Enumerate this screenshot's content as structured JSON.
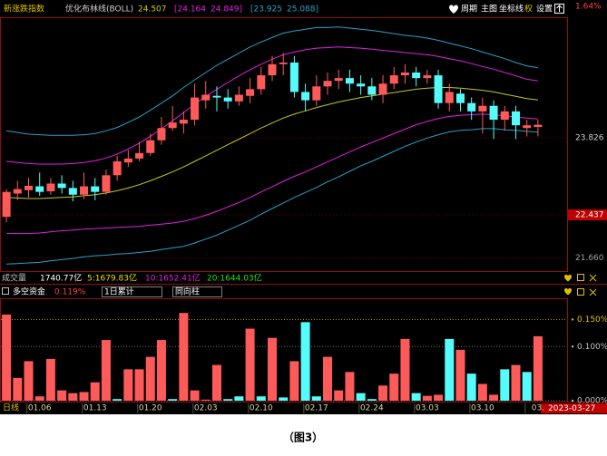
{
  "ui": {
    "index_name": "新涨跌指数",
    "indicator": "优化布林线(BOLL)",
    "boll_mid": "24.507",
    "boll_inner_low": "[24.164",
    "boll_inner_high": "24.849]",
    "boll_outer_low": "[23.925",
    "boll_outer_high": "25.088]",
    "menu": [
      "周期",
      "主图",
      "坐标线",
      "权",
      "设置"
    ],
    "top_pct": "1.64%",
    "volume_label": "成交量",
    "volume": "1740.77亿",
    "vol_ma5": "5:1679.83亿",
    "vol_ma10": "10:1652.41亿",
    "vol_ma20": "20:1644.03亿",
    "panel_name": "多空资金",
    "panel_value": "0.119%",
    "select1": "1日累计",
    "select2": "同向柱",
    "period": "日线",
    "date": "2023-03-27",
    "caption": "（图3）"
  },
  "chart_data": [
    {
      "type": "candlestick",
      "up_color": "#ff5a5a",
      "down_color": "#54fcfc",
      "categories": [
        null,
        null,
        null,
        "01.06",
        null,
        null,
        null,
        null,
        "01.13",
        null,
        null,
        null,
        null,
        "01.20",
        null,
        null,
        null,
        null,
        "02.03",
        null,
        null,
        null,
        null,
        "02.10",
        null,
        null,
        null,
        null,
        "02.17",
        null,
        null,
        null,
        null,
        "02.24",
        null,
        null,
        null,
        null,
        "03.03",
        null,
        null,
        null,
        null,
        "03.10",
        null,
        null,
        null,
        null,
        "03."
      ],
      "open": [
        22.4,
        22.82,
        22.88,
        22.95,
        22.86,
        23.0,
        22.92,
        22.8,
        22.95,
        22.85,
        23.15,
        23.38,
        23.45,
        23.55,
        23.78,
        24.0,
        24.08,
        24.15,
        24.5,
        24.58,
        24.55,
        24.48,
        24.58,
        24.7,
        24.95,
        25.15,
        25.18,
        24.65,
        24.5,
        24.75,
        24.85,
        24.9,
        24.8,
        24.75,
        24.6,
        24.8,
        24.95,
        25.0,
        24.9,
        24.95,
        24.45,
        24.62,
        24.45,
        24.3,
        24.4,
        24.15,
        24.3,
        24.0,
        24.02
      ],
      "high": [
        22.9,
        23.05,
        23.1,
        23.2,
        23.1,
        23.15,
        23.05,
        23.2,
        23.1,
        23.25,
        23.5,
        23.6,
        23.75,
        23.9,
        24.2,
        24.4,
        24.3,
        24.8,
        24.85,
        24.75,
        24.7,
        24.75,
        24.9,
        25.1,
        25.3,
        25.35,
        25.3,
        24.8,
        24.95,
        25.0,
        25.05,
        25.05,
        24.95,
        24.9,
        24.95,
        25.1,
        25.15,
        25.1,
        25.05,
        25.05,
        24.8,
        24.7,
        24.55,
        24.55,
        24.5,
        24.4,
        24.4,
        24.15,
        24.15
      ],
      "low": [
        22.3,
        22.7,
        22.75,
        22.78,
        22.8,
        22.82,
        22.68,
        22.72,
        22.7,
        22.8,
        23.05,
        23.3,
        23.4,
        23.5,
        23.7,
        23.95,
        23.9,
        24.05,
        24.35,
        24.3,
        24.35,
        24.4,
        24.45,
        24.6,
        24.85,
        24.95,
        24.55,
        24.3,
        24.4,
        24.6,
        24.7,
        24.65,
        24.6,
        24.5,
        24.45,
        24.7,
        24.8,
        24.75,
        24.8,
        24.35,
        24.3,
        24.3,
        24.15,
        23.9,
        23.8,
        23.95,
        23.8,
        23.85,
        23.85
      ],
      "close": [
        22.85,
        22.9,
        22.96,
        22.85,
        23.0,
        22.92,
        22.8,
        22.95,
        22.85,
        23.15,
        23.4,
        23.45,
        23.55,
        23.78,
        24.0,
        24.1,
        24.15,
        24.55,
        24.6,
        24.55,
        24.48,
        24.6,
        24.7,
        24.95,
        25.15,
        25.18,
        24.65,
        24.5,
        24.75,
        24.85,
        24.9,
        24.8,
        24.75,
        24.6,
        24.8,
        24.95,
        25.0,
        24.9,
        24.95,
        24.45,
        24.65,
        24.45,
        24.3,
        24.4,
        24.15,
        24.3,
        24.05,
        24.05,
        24.06
      ],
      "series": [
        {
          "color": "#c8c81e",
          "values": [
            22.75,
            22.74,
            22.73,
            22.73,
            22.74,
            22.75,
            22.76,
            22.78,
            22.8,
            22.83,
            22.87,
            22.92,
            22.98,
            23.05,
            23.13,
            23.21,
            23.3,
            23.4,
            23.5,
            23.6,
            23.7,
            23.8,
            23.9,
            24.0,
            24.09,
            24.18,
            24.25,
            24.31,
            24.37,
            24.42,
            24.47,
            24.51,
            24.55,
            24.58,
            24.61,
            24.64,
            24.67,
            24.7,
            24.72,
            24.73,
            24.73,
            24.72,
            24.7,
            24.68,
            24.65,
            24.61,
            24.57,
            24.53,
            24.507
          ]
        },
        {
          "color": "#e020e0",
          "values": [
            23.4,
            23.38,
            23.36,
            23.35,
            23.35,
            23.35,
            23.36,
            23.38,
            23.41,
            23.46,
            23.53,
            23.62,
            23.73,
            23.85,
            23.99,
            24.13,
            24.28,
            24.43,
            24.57,
            24.7,
            24.82,
            24.94,
            25.05,
            25.15,
            25.24,
            25.32,
            25.37,
            25.41,
            25.44,
            25.45,
            25.46,
            25.45,
            25.44,
            25.42,
            25.4,
            25.38,
            25.36,
            25.34,
            25.32,
            25.29,
            25.25,
            25.21,
            25.16,
            25.11,
            25.06,
            25.0,
            24.94,
            24.88,
            24.849
          ]
        },
        {
          "color": "#e020e0",
          "values": [
            22.1,
            22.1,
            22.1,
            22.11,
            22.13,
            22.15,
            22.16,
            22.18,
            22.19,
            22.2,
            22.21,
            22.22,
            22.23,
            22.25,
            22.27,
            22.29,
            22.32,
            22.37,
            22.43,
            22.5,
            22.58,
            22.66,
            22.75,
            22.85,
            22.94,
            23.04,
            23.13,
            23.21,
            23.3,
            23.39,
            23.48,
            23.57,
            23.66,
            23.74,
            23.82,
            23.9,
            23.98,
            24.06,
            24.12,
            24.17,
            24.21,
            24.23,
            24.24,
            24.25,
            24.24,
            24.22,
            24.2,
            24.18,
            24.164
          ]
        },
        {
          "color": "#2aa0c8",
          "values": [
            23.95,
            23.92,
            23.89,
            23.88,
            23.87,
            23.87,
            23.87,
            23.88,
            23.9,
            23.95,
            24.01,
            24.1,
            24.2,
            24.32,
            24.45,
            24.58,
            24.73,
            24.87,
            25.0,
            25.13,
            25.24,
            25.35,
            25.46,
            25.55,
            25.63,
            25.71,
            25.75,
            25.78,
            25.81,
            25.81,
            25.82,
            25.8,
            25.78,
            25.76,
            25.73,
            25.7,
            25.67,
            25.65,
            25.62,
            25.58,
            25.53,
            25.48,
            25.43,
            25.37,
            25.31,
            25.25,
            25.18,
            25.12,
            25.088
          ]
        },
        {
          "color": "#2aa0c8",
          "values": [
            21.55,
            21.56,
            21.57,
            21.58,
            21.61,
            21.63,
            21.65,
            21.68,
            21.7,
            21.71,
            21.73,
            21.74,
            21.76,
            21.78,
            21.81,
            21.84,
            21.87,
            21.93,
            22.0,
            22.07,
            22.16,
            22.25,
            22.34,
            22.45,
            22.55,
            22.65,
            22.75,
            22.84,
            22.93,
            23.03,
            23.12,
            23.22,
            23.32,
            23.4,
            23.49,
            23.58,
            23.67,
            23.75,
            23.82,
            23.88,
            23.93,
            23.96,
            23.97,
            23.99,
            23.99,
            23.97,
            23.96,
            23.94,
            23.925
          ]
        }
      ],
      "ylim": [
        21.44,
        25.98
      ],
      "yticks": [
        23.826,
        22.437,
        {
          "value": 21.66,
          "label": "21.660"
        }
      ],
      "grid": true
    },
    {
      "type": "bar",
      "values": [
        0.159,
        0.042,
        0.073,
        0.008,
        0.077,
        0.019,
        0.014,
        0.016,
        0.034,
        0.112,
        0.003,
        0.058,
        0.058,
        0.081,
        0.112,
        0.003,
        0.162,
        0.019,
        0.002,
        0.066,
        0.003,
        0.008,
        0.133,
        0.008,
        0.116,
        0.006,
        0.073,
        0.145,
        0.008,
        0.081,
        0.019,
        0.053,
        0.014,
        0.003,
        0.028,
        0.05,
        0.114,
        0.014,
        0.009,
        0.011,
        0.114,
        0.094,
        0.05,
        0.031,
        0.011,
        0.058,
        0.066,
        0.053,
        0.119
      ],
      "colors": [
        "#ff5a5a",
        "#ff5a5a",
        "#ff5a5a",
        "#ff5a5a",
        "#ff5a5a",
        "#ff5a5a",
        "#ff5a5a",
        "#ff5a5a",
        "#ff5a5a",
        "#ff5a5a",
        "#54fcfc",
        "#ff5a5a",
        "#ff5a5a",
        "#ff5a5a",
        "#ff5a5a",
        "#54fcfc",
        "#ff5a5a",
        "#ff5a5a",
        "#ff5a5a",
        "#ff5a5a",
        "#54fcfc",
        "#54fcfc",
        "#ff5a5a",
        "#54fcfc",
        "#ff5a5a",
        "#54fcfc",
        "#ff5a5a",
        "#54fcfc",
        "#54fcfc",
        "#ff5a5a",
        "#ff5a5a",
        "#ff5a5a",
        "#54fcfc",
        "#54fcfc",
        "#ff5a5a",
        "#ff5a5a",
        "#ff5a5a",
        "#54fcfc",
        "#ff5a5a",
        "#ff5a5a",
        "#54fcfc",
        "#ff5a5a",
        "#54fcfc",
        "#ff5a5a",
        "#ff5a5a",
        "#54fcfc",
        "#ff5a5a",
        "#54fcfc",
        "#ff5a5a"
      ],
      "ylim": [
        0,
        0.1875
      ],
      "yticks": [
        {
          "value": 0.15,
          "label": "0.150%"
        },
        {
          "value": 0.1,
          "label": "0.100%"
        },
        {
          "value": 0,
          "label": "0.000%"
        }
      ],
      "grid": true
    }
  ]
}
